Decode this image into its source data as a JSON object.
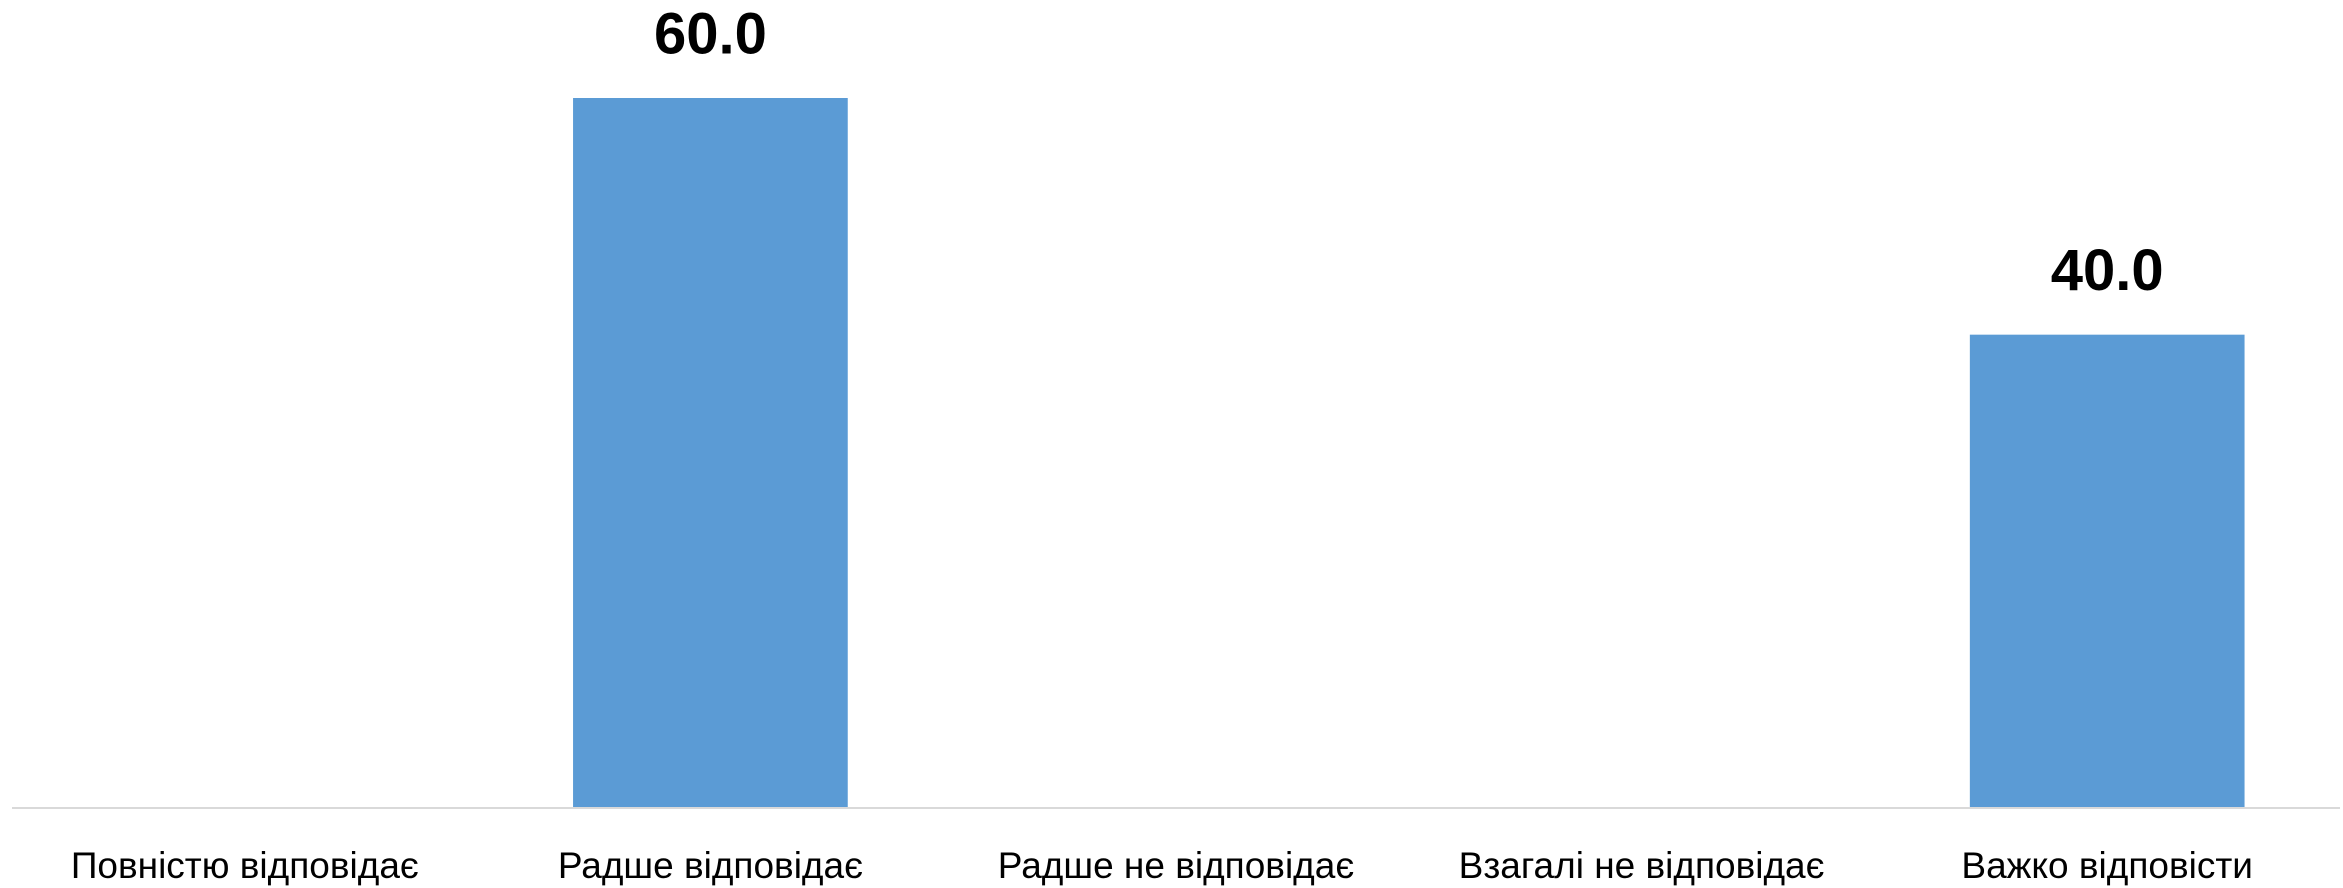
{
  "chart_data": {
    "type": "bar",
    "categories": [
      "Повністю відповідає",
      "Радше відповідає",
      "Радше не відповідає",
      "Взагалі не відповідає",
      "Важко відповісти"
    ],
    "values": [
      null,
      60,
      null,
      null,
      40
    ],
    "value_labels": [
      null,
      "60.0",
      null,
      null,
      "40.0"
    ],
    "color": "#5b9bd5",
    "ylim": [
      0,
      60
    ]
  }
}
